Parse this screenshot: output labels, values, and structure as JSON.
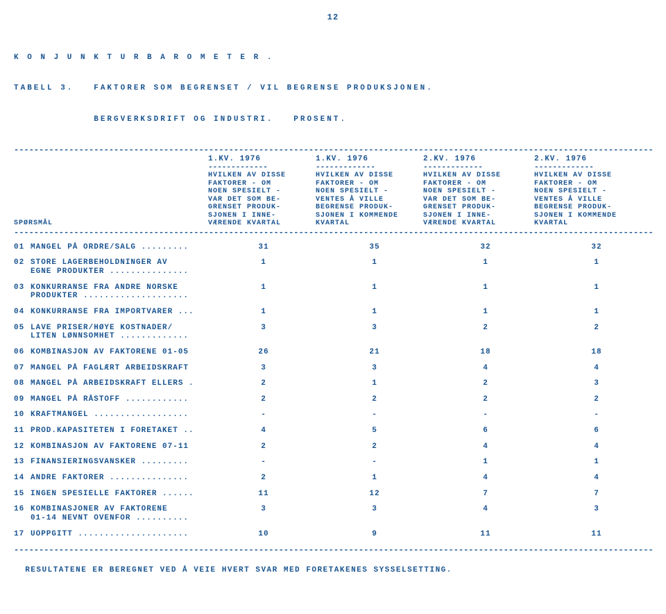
{
  "page_number": "12",
  "colors": {
    "text": "#1a5490",
    "background": "#ffffff"
  },
  "typography": {
    "family": "Courier New",
    "size_pt": 11,
    "weight": "bold"
  },
  "title": {
    "line1": "K O N J U N K T U R B A R O M E T E R .",
    "line2": "TABELL 3.   FAKTORER SOM BEGRENSET / VIL BEGRENSE PRODUKSJONEN.",
    "line3": "            BERGVERKSDRIFT OG INDUSTRI.   PROSENT."
  },
  "rule_dashes": "------------------------------------------------------------------------------------------------------------------------------------",
  "quarters": [
    "1.KV. 1976",
    "1.KV. 1976",
    "2.KV. 1976",
    "2.KV. 1976"
  ],
  "quarter_dash": "-------------",
  "row_label_header": "SPØRSMÅL",
  "column_headers": [
    "HVILKEN AV DISSE\nFAKTORER - OM\nNOEN SPESIELT -\nVAR DET SOM BE-\nGRENSET PRODUK-\nSJONEN I INNE-\nVÆRENDE KVARTAL",
    "HVILKEN AV DISSE\nFAKTORER - OM\nNOEN SPESIELT -\nVENTES Å VILLE\nBEGRENSE PRODUK-\nSJONEN I KOMMENDE\nKVARTAL",
    "HVILKEN AV DISSE\nFAKTORER - OM\nNOEN SPESIELT -\nVAR DET SOM BE-\nGRENSET PRODUK-\nSJONEN I INNE-\nVÆRENDE KVARTAL",
    "HVILKEN AV DISSE\nFAKTORER - OM\nNOEN SPESIELT -\nVENTES Å VILLE\nBEGRENSE PRODUK-\nSJONEN I KOMMENDE\nKVARTAL"
  ],
  "rows": [
    {
      "n": "01",
      "label": "MANGEL PÅ ORDRE/SALG .........",
      "v": [
        "31",
        "35",
        "32",
        "32"
      ]
    },
    {
      "n": "02",
      "label": "STORE LAGERBEHOLDNINGER AV\nEGNE PRODUKTER ...............",
      "v": [
        "1",
        "1",
        "1",
        "1"
      ]
    },
    {
      "n": "03",
      "label": "KONKURRANSE FRA ANDRE NORSKE\nPRODUKTER ....................",
      "v": [
        "1",
        "1",
        "1",
        "1"
      ]
    },
    {
      "n": "04",
      "label": "KONKURRANSE FRA IMPORTVARER ...",
      "v": [
        "1",
        "1",
        "1",
        "1"
      ]
    },
    {
      "n": "05",
      "label": "LAVE PRISER/HØYE KOSTNADER/\nLITEN LØNNSOMHET .............",
      "v": [
        "3",
        "3",
        "2",
        "2"
      ]
    },
    {
      "n": "06",
      "label": "KOMBINASJON AV FAKTORENE 01-05",
      "v": [
        "26",
        "21",
        "18",
        "18"
      ]
    },
    {
      "n": "07",
      "label": "MANGEL PÅ FAGLÆRT ARBEIDSKRAFT",
      "v": [
        "3",
        "3",
        "4",
        "4"
      ]
    },
    {
      "n": "08",
      "label": "MANGEL PÅ ARBEIDSKRAFT ELLERS .",
      "v": [
        "2",
        "1",
        "2",
        "3"
      ]
    },
    {
      "n": "09",
      "label": "MANGEL PÅ RÅSTOFF ............",
      "v": [
        "2",
        "2",
        "2",
        "2"
      ]
    },
    {
      "n": "10",
      "label": "KRAFTMANGEL ..................",
      "v": [
        "-",
        "-",
        "-",
        "-"
      ]
    },
    {
      "n": "11",
      "label": "PROD.KAPASITETEN I FORETAKET ..",
      "v": [
        "4",
        "5",
        "6",
        "6"
      ]
    },
    {
      "n": "12",
      "label": "KOMBINASJON AV FAKTORENE 07-11",
      "v": [
        "2",
        "2",
        "4",
        "4"
      ]
    },
    {
      "n": "13",
      "label": "FINANSIERINGSVANSKER .........",
      "v": [
        "-",
        "-",
        "1",
        "1"
      ]
    },
    {
      "n": "14",
      "label": "ANDRE FAKTORER ...............",
      "v": [
        "2",
        "1",
        "4",
        "4"
      ]
    },
    {
      "n": "15",
      "label": "INGEN SPESIELLE FAKTORER ......",
      "v": [
        "11",
        "12",
        "7",
        "7"
      ]
    },
    {
      "n": "16",
      "label": "KOMBINASJONER AV FAKTORENE\n01-14 NEVNT OVENFOR ..........",
      "v": [
        "3",
        "3",
        "4",
        "3"
      ]
    },
    {
      "n": "17",
      "label": "UOPPGITT .....................",
      "v": [
        "10",
        "9",
        "11",
        "11"
      ]
    }
  ],
  "footer": "RESULTATENE ER BEREGNET VED Å VEIE HVERT SVAR MED FORETAKENES SYSSELSETTING."
}
